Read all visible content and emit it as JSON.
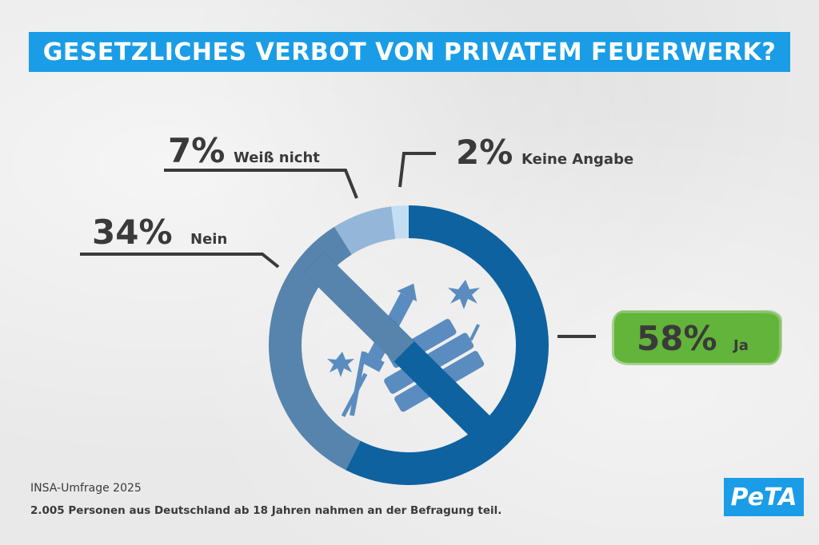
{
  "header": {
    "title": "GESETZLICHES VERBOT VON PRIVATEM FEUERWERK?"
  },
  "chart_data": {
    "type": "pie",
    "title": "GESETZLICHES VERBOT VON PRIVATEM FEUERWERK?",
    "categories": [
      "Ja",
      "Nein",
      "Weiß nicht",
      "Keine Angabe"
    ],
    "values": [
      58,
      34,
      7,
      2
    ],
    "labels": [
      "58%",
      "34%",
      "7%",
      "2%"
    ],
    "colors": [
      "#0e62a0",
      "#5684ad",
      "#94b7d9",
      "#c3def3"
    ],
    "donut": true
  },
  "footer": {
    "source": "INSA-Umfrage 2025",
    "note": "2.005 Personen aus Deutschland ab 18 Jahren nahmen an der Befragung teil."
  },
  "brand": {
    "logo_text": "PeTA",
    "accent": "#1a9de6",
    "highlight": "#63b43a"
  }
}
